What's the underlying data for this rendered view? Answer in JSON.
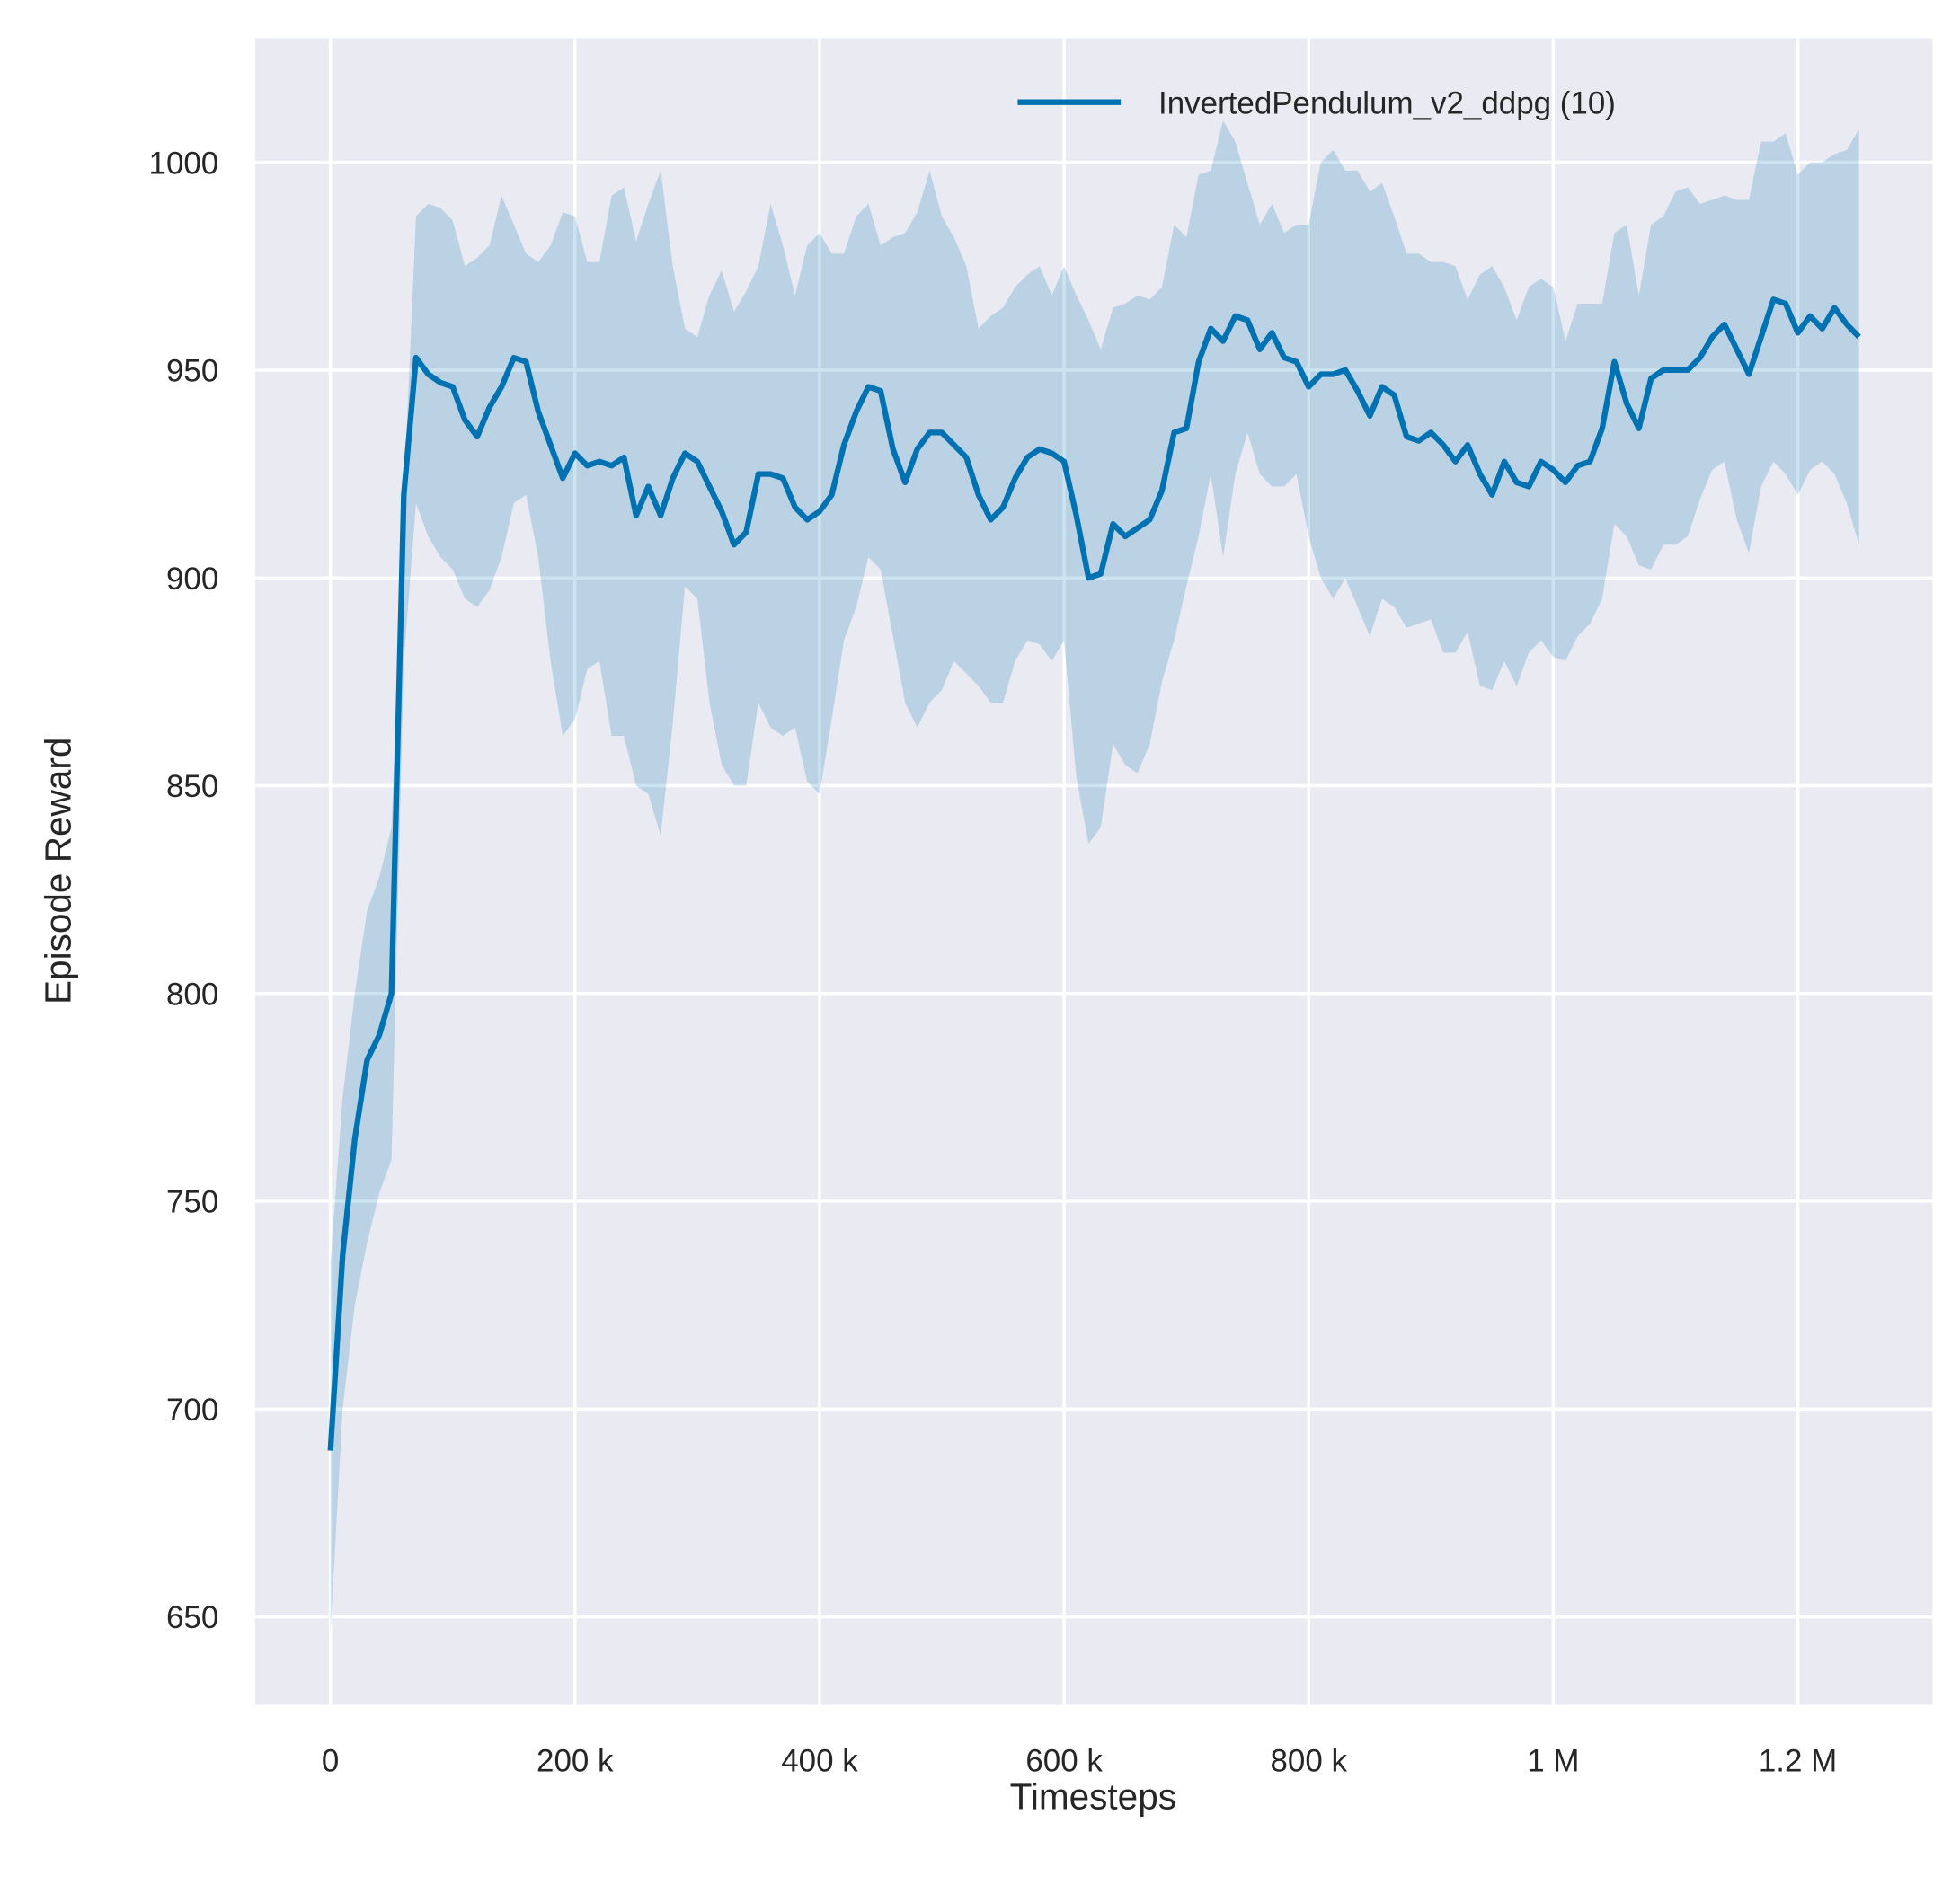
{
  "chart_data": {
    "type": "line",
    "title": "",
    "xlabel": "Timesteps",
    "ylabel": "Episode Reward",
    "xlim": [
      -61600,
      1310000
    ],
    "ylim": [
      628.8,
      1029.9
    ],
    "grid": true,
    "legend_placement": "top-right",
    "background_color": "#eaeaf2",
    "grid_color": "#ffffff",
    "xticks": [
      0,
      200000,
      400000,
      600000,
      800000,
      1000000,
      1200000
    ],
    "xtick_labels": [
      "0",
      "200 k",
      "400 k",
      "600 k",
      "800 k",
      "1 M",
      "1.2 M"
    ],
    "yticks": [
      650,
      700,
      750,
      800,
      850,
      900,
      950,
      1000
    ],
    "ytick_labels": [
      "650",
      "700",
      "750",
      "800",
      "850",
      "900",
      "950",
      "1000"
    ],
    "series": [
      {
        "name": "InvertedPendulum_v2_ddpg (10)",
        "color": "#0072b2",
        "band_alpha": 0.2,
        "x": [
          0,
          10000,
          20000,
          30000,
          40000,
          50000,
          60000,
          70000,
          80000,
          90000,
          100000,
          110000,
          120000,
          130000,
          140000,
          150000,
          160000,
          170000,
          180000,
          190000,
          200000,
          210000,
          220000,
          230000,
          240000,
          250000,
          260000,
          270000,
          280000,
          290000,
          300000,
          310000,
          320000,
          330000,
          340000,
          350000,
          360000,
          370000,
          380000,
          390000,
          400000,
          410000,
          420000,
          430000,
          440000,
          450000,
          460000,
          470000,
          480000,
          490000,
          500000,
          510000,
          520000,
          530000,
          540000,
          550000,
          560000,
          570000,
          580000,
          590000,
          600000,
          610000,
          620000,
          630000,
          640000,
          650000,
          660000,
          670000,
          680000,
          690000,
          700000,
          710000,
          720000,
          730000,
          740000,
          750000,
          760000,
          770000,
          780000,
          790000,
          800000,
          810000,
          820000,
          830000,
          840000,
          850000,
          860000,
          870000,
          880000,
          890000,
          900000,
          910000,
          920000,
          930000,
          940000,
          950000,
          960000,
          970000,
          980000,
          990000,
          1000000,
          1010000,
          1020000,
          1030000,
          1040000,
          1050000,
          1060000,
          1070000,
          1080000,
          1090000,
          1100000,
          1110000,
          1120000,
          1130000,
          1140000,
          1150000,
          1160000,
          1170000,
          1180000,
          1190000,
          1200000,
          1210000,
          1220000,
          1230000,
          1240000,
          1250000
        ],
        "mean": [
          690,
          737,
          765,
          784,
          790,
          800,
          920,
          953,
          949,
          947,
          946,
          938,
          934,
          941,
          946,
          953,
          952,
          940,
          932,
          924,
          930,
          927,
          928,
          927,
          929,
          915,
          922,
          915,
          924,
          930,
          928,
          922,
          916,
          908,
          911,
          925,
          925,
          924,
          917,
          914,
          916,
          920,
          932,
          940,
          946,
          945,
          931,
          923,
          931,
          935,
          935,
          932,
          929,
          920,
          914,
          917,
          924,
          929,
          931,
          930,
          928,
          915,
          900,
          901,
          913,
          910,
          912,
          914,
          921,
          935,
          936,
          952,
          960,
          957,
          963,
          962,
          955,
          959,
          953,
          952,
          946,
          949,
          949,
          950,
          945,
          939,
          946,
          944,
          934,
          933,
          935,
          932,
          928,
          932,
          925,
          920,
          928,
          923,
          922,
          928,
          926,
          923,
          927,
          928,
          936,
          952,
          942,
          936,
          948,
          950,
          950,
          950,
          953,
          958,
          961,
          955,
          949,
          958,
          967,
          966,
          959,
          963,
          960,
          965,
          961,
          958
        ],
        "upper": [
          735,
          775,
          800,
          820,
          828,
          840,
          920,
          987,
          990,
          989,
          986,
          975,
          977,
          980,
          992,
          985,
          978,
          976,
          980,
          988,
          987,
          976,
          976,
          992,
          994,
          981,
          990,
          998,
          975,
          960,
          958,
          968,
          974,
          964,
          969,
          975,
          990,
          980,
          968,
          980,
          983,
          978,
          978,
          987,
          990,
          980,
          982,
          983,
          988,
          998,
          987,
          982,
          975,
          960,
          963,
          965,
          970,
          973,
          975,
          968,
          975,
          968,
          962,
          955,
          965,
          966,
          968,
          967,
          970,
          985,
          982,
          997,
          998,
          1010,
          1005,
          995,
          985,
          990,
          983,
          985,
          985,
          1000,
          1003,
          998,
          998,
          993,
          995,
          987,
          978,
          978,
          976,
          976,
          975,
          967,
          973,
          975,
          970,
          962,
          970,
          972,
          970,
          957,
          966,
          966,
          966,
          983,
          985,
          968,
          985,
          987,
          993,
          994,
          990,
          991,
          992,
          991,
          991,
          1005,
          1005,
          1007,
          997,
          1000,
          1000,
          1002,
          1003,
          1008
        ],
        "lower": [
          646,
          700,
          725,
          740,
          752,
          760,
          880,
          918,
          910,
          905,
          902,
          895,
          893,
          897,
          905,
          918,
          920,
          905,
          880,
          862,
          866,
          878,
          880,
          862,
          862,
          850,
          848,
          838,
          865,
          898,
          895,
          870,
          855,
          850,
          850,
          870,
          864,
          862,
          864,
          851,
          848,
          866,
          885,
          893,
          905,
          902,
          886,
          870,
          864,
          870,
          873,
          880,
          877,
          874,
          870,
          870,
          880,
          885,
          884,
          880,
          885,
          852,
          836,
          840,
          860,
          855,
          853,
          860,
          875,
          885,
          898,
          910,
          925,
          905,
          925,
          935,
          925,
          922,
          922,
          925,
          910,
          900,
          895,
          900,
          893,
          886,
          895,
          893,
          888,
          889,
          890,
          882,
          882,
          887,
          874,
          873,
          880,
          874,
          882,
          885,
          881,
          880,
          886,
          889,
          895,
          913,
          910,
          903,
          902,
          908,
          908,
          910,
          919,
          926,
          928,
          914,
          906,
          922,
          928,
          925,
          920,
          926,
          928,
          925,
          918,
          908
        ]
      }
    ]
  }
}
